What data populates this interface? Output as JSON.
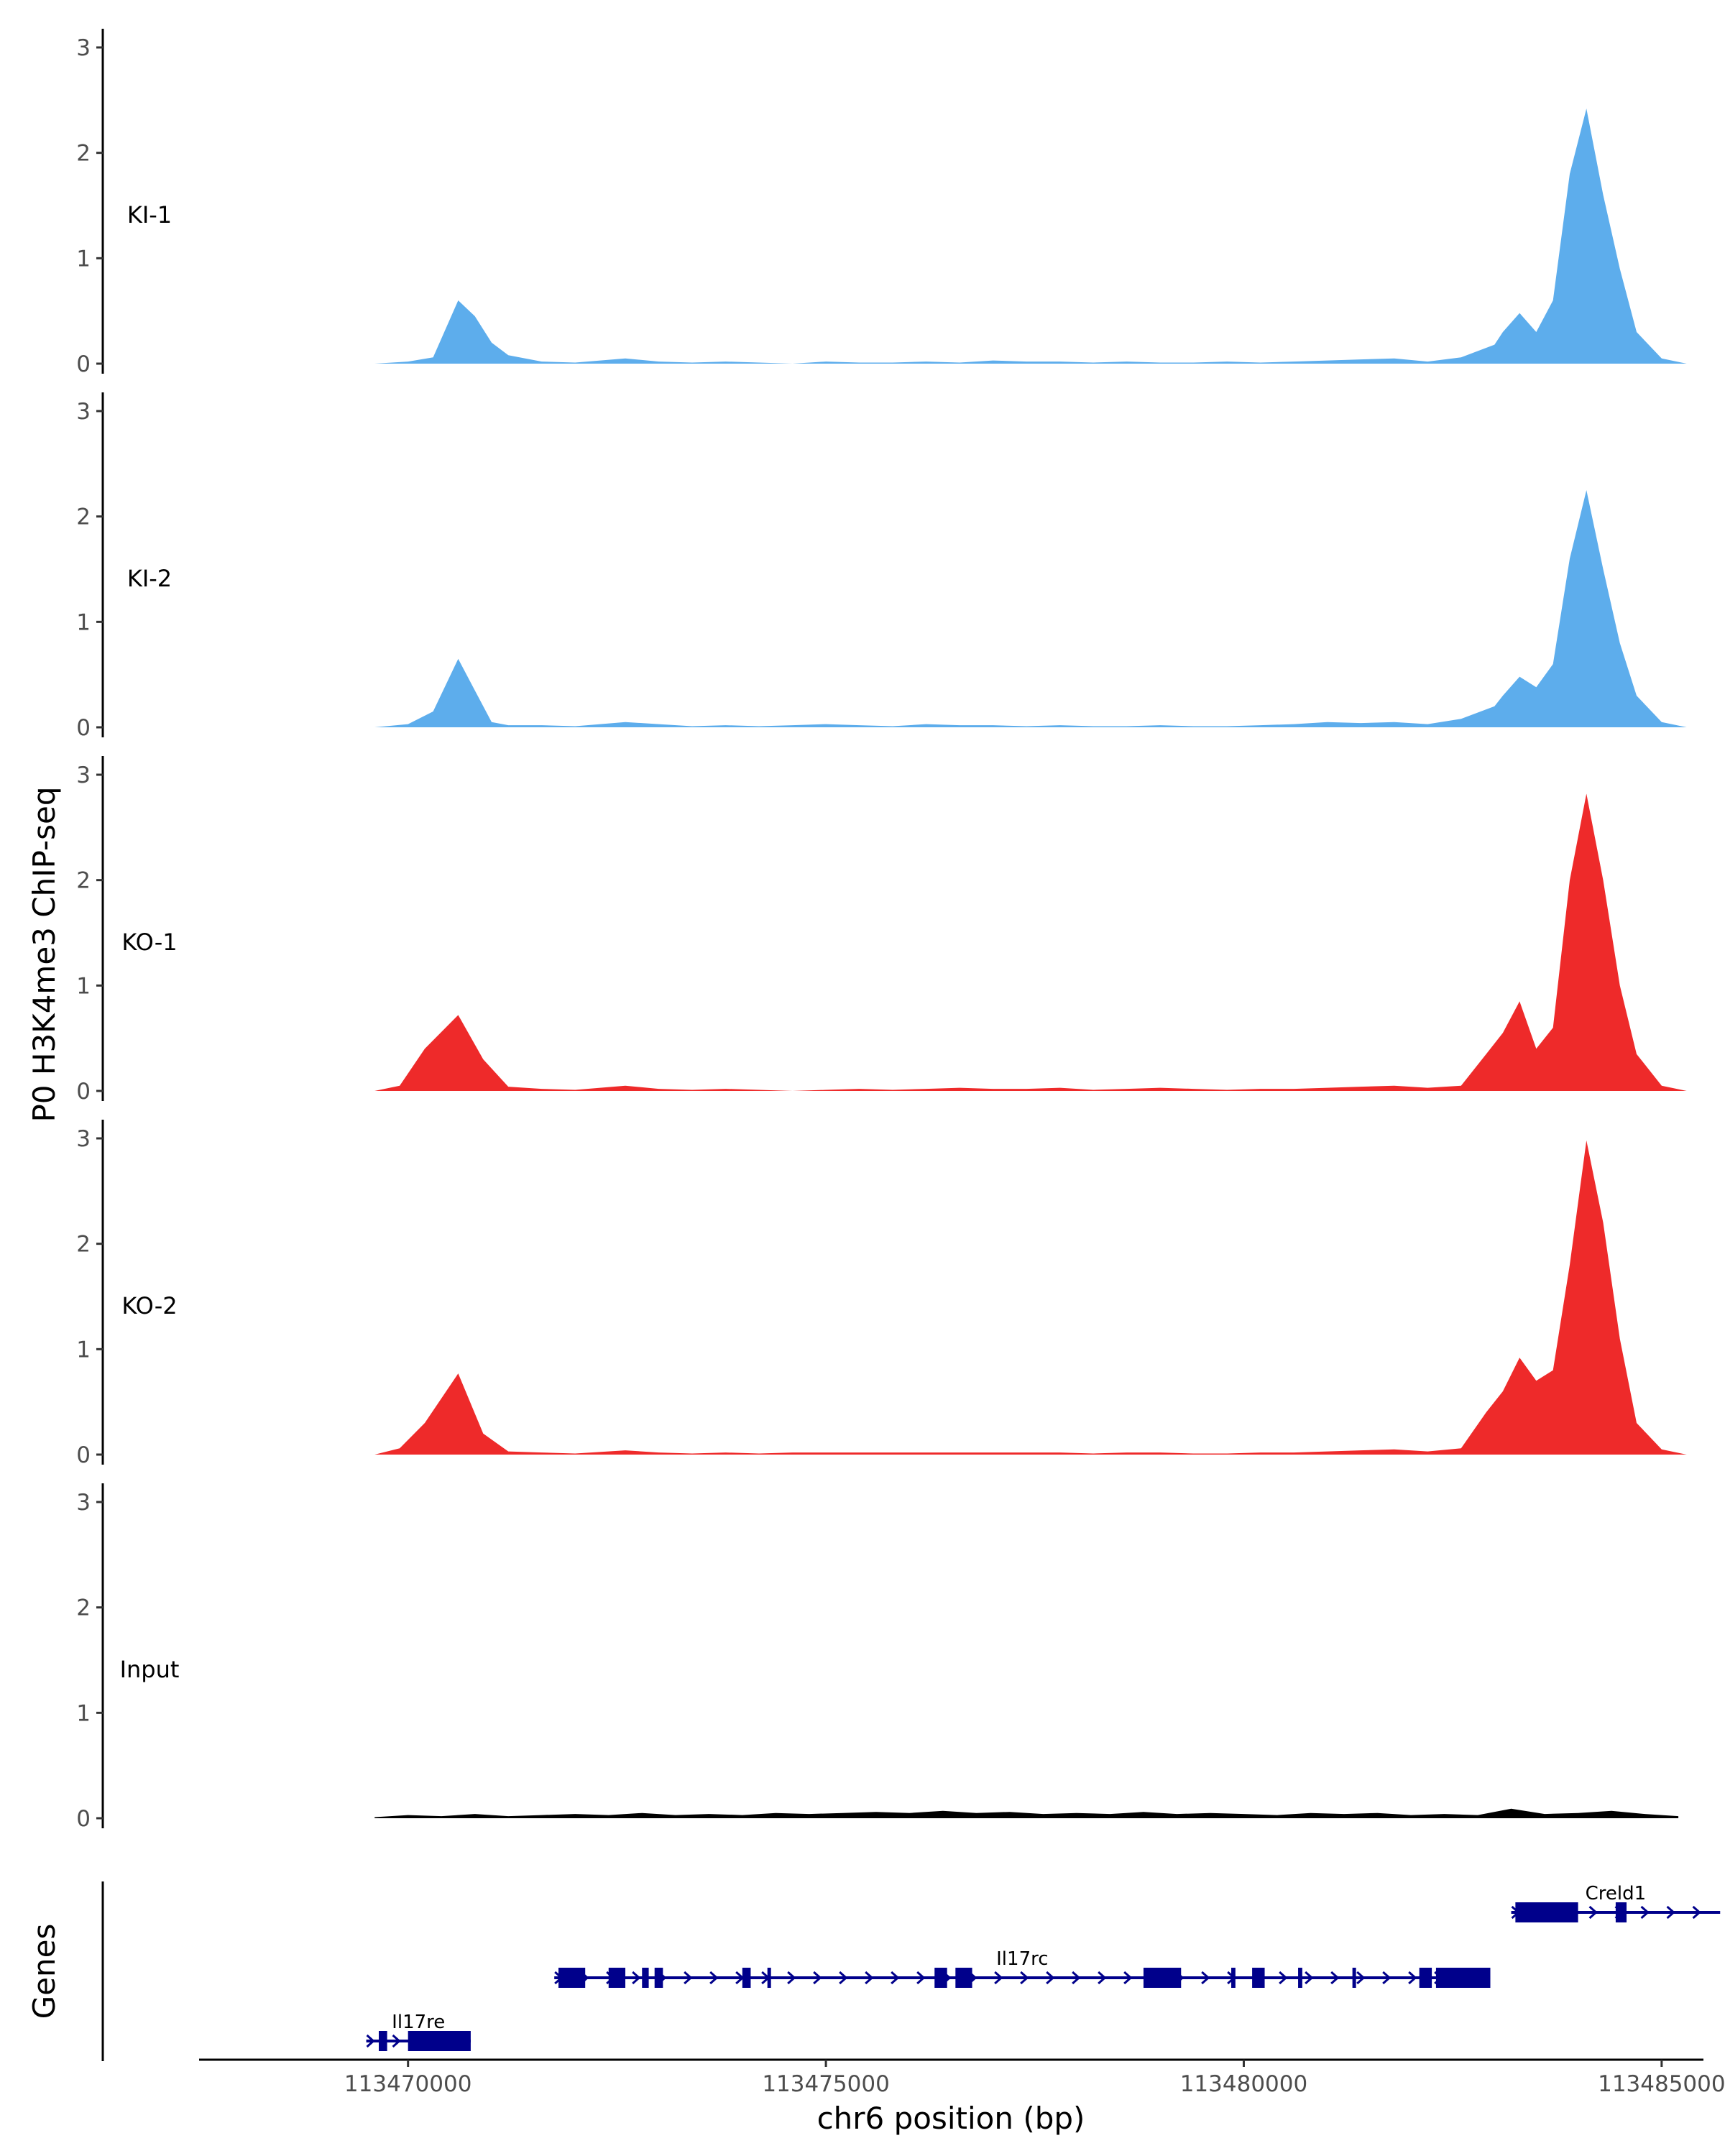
{
  "chart_data": {
    "type": "area",
    "title": "",
    "ylabel": "P0 H3K4me3 ChIP-seq",
    "genes_label": "Genes",
    "xlabel": "chr6 position (bp)",
    "xlim": [
      113467500,
      113485500
    ],
    "ylim": [
      0,
      3
    ],
    "yticks": [
      0,
      1,
      2,
      3
    ],
    "xticks": [
      {
        "value": 113470000,
        "label": "113470000"
      },
      {
        "value": 113475000,
        "label": "113475000"
      },
      {
        "value": 113480000,
        "label": "113480000"
      },
      {
        "value": 113485000,
        "label": "113485000"
      }
    ],
    "tracks": [
      {
        "name": "KI-1",
        "color": "#5DADEC",
        "x": [
          113469600,
          113470000,
          113470300,
          113470600,
          113470800,
          113471000,
          113471200,
          113471600,
          113472000,
          113472600,
          113473000,
          113473400,
          113473800,
          113474200,
          113474600,
          113475000,
          113475400,
          113475800,
          113476200,
          113476600,
          113477000,
          113477400,
          113477800,
          113478200,
          113478600,
          113479000,
          113479400,
          113479800,
          113480200,
          113480600,
          113481000,
          113481400,
          113481800,
          113482200,
          113482600,
          113483000,
          113483100,
          113483300,
          113483500,
          113483700,
          113483900,
          113484100,
          113484300,
          113484500,
          113484700,
          113485000,
          113485300
        ],
        "y": [
          0,
          0.02,
          0.06,
          0.6,
          0.45,
          0.2,
          0.08,
          0.02,
          0.01,
          0.05,
          0.02,
          0.01,
          0.02,
          0.01,
          0.0,
          0.02,
          0.01,
          0.01,
          0.02,
          0.01,
          0.03,
          0.02,
          0.02,
          0.01,
          0.02,
          0.01,
          0.01,
          0.02,
          0.01,
          0.02,
          0.03,
          0.04,
          0.05,
          0.02,
          0.06,
          0.18,
          0.3,
          0.48,
          0.3,
          0.6,
          1.8,
          2.42,
          1.6,
          0.9,
          0.3,
          0.05,
          0
        ]
      },
      {
        "name": "KI-2",
        "color": "#5DADEC",
        "x": [
          113469600,
          113470000,
          113470300,
          113470600,
          113470800,
          113471000,
          113471200,
          113471600,
          113472000,
          113472600,
          113473000,
          113473400,
          113473800,
          113474200,
          113474600,
          113475000,
          113475400,
          113475800,
          113476200,
          113476600,
          113477000,
          113477400,
          113477800,
          113478200,
          113478600,
          113479000,
          113479400,
          113479800,
          113480200,
          113480600,
          113481000,
          113481400,
          113481800,
          113482200,
          113482600,
          113483000,
          113483100,
          113483300,
          113483500,
          113483700,
          113483900,
          113484100,
          113484300,
          113484500,
          113484700,
          113485000,
          113485300
        ],
        "y": [
          0,
          0.03,
          0.15,
          0.65,
          0.35,
          0.05,
          0.02,
          0.02,
          0.01,
          0.05,
          0.03,
          0.01,
          0.02,
          0.01,
          0.02,
          0.03,
          0.02,
          0.01,
          0.03,
          0.02,
          0.02,
          0.01,
          0.02,
          0.01,
          0.01,
          0.02,
          0.01,
          0.01,
          0.02,
          0.03,
          0.05,
          0.04,
          0.05,
          0.03,
          0.08,
          0.2,
          0.3,
          0.48,
          0.38,
          0.6,
          1.6,
          2.25,
          1.5,
          0.8,
          0.3,
          0.05,
          0
        ]
      },
      {
        "name": "KO-1",
        "color": "#EE2A2A",
        "x": [
          113469600,
          113469900,
          113470200,
          113470600,
          113470900,
          113471200,
          113471600,
          113472000,
          113472600,
          113473000,
          113473400,
          113473800,
          113474200,
          113474600,
          113475000,
          113475400,
          113475800,
          113476200,
          113476600,
          113477000,
          113477400,
          113477800,
          113478200,
          113478600,
          113479000,
          113479400,
          113479800,
          113480200,
          113480600,
          113481000,
          113481400,
          113481800,
          113482200,
          113482600,
          113482900,
          113483100,
          113483300,
          113483500,
          113483700,
          113483900,
          113484100,
          113484300,
          113484500,
          113484700,
          113485000,
          113485300
        ],
        "y": [
          0,
          0.05,
          0.4,
          0.72,
          0.3,
          0.04,
          0.02,
          0.01,
          0.05,
          0.02,
          0.01,
          0.02,
          0.01,
          0.0,
          0.01,
          0.02,
          0.01,
          0.02,
          0.03,
          0.02,
          0.02,
          0.03,
          0.01,
          0.02,
          0.03,
          0.02,
          0.01,
          0.02,
          0.02,
          0.03,
          0.04,
          0.05,
          0.03,
          0.05,
          0.35,
          0.55,
          0.85,
          0.4,
          0.6,
          2.0,
          2.82,
          2.0,
          1.0,
          0.35,
          0.05,
          0
        ]
      },
      {
        "name": "KO-2",
        "color": "#EE2A2A",
        "x": [
          113469600,
          113469900,
          113470200,
          113470600,
          113470900,
          113471200,
          113471600,
          113472000,
          113472600,
          113473000,
          113473400,
          113473800,
          113474200,
          113474600,
          113475000,
          113475400,
          113475800,
          113476200,
          113476600,
          113477000,
          113477400,
          113477800,
          113478200,
          113478600,
          113479000,
          113479400,
          113479800,
          113480200,
          113480600,
          113481000,
          113481400,
          113481800,
          113482200,
          113482600,
          113482900,
          113483100,
          113483300,
          113483500,
          113483700,
          113483900,
          113484100,
          113484300,
          113484500,
          113484700,
          113485000,
          113485300
        ],
        "y": [
          0,
          0.06,
          0.3,
          0.77,
          0.2,
          0.03,
          0.02,
          0.01,
          0.04,
          0.02,
          0.01,
          0.02,
          0.01,
          0.02,
          0.02,
          0.02,
          0.02,
          0.02,
          0.02,
          0.02,
          0.02,
          0.02,
          0.01,
          0.02,
          0.02,
          0.01,
          0.01,
          0.02,
          0.02,
          0.03,
          0.04,
          0.05,
          0.03,
          0.06,
          0.4,
          0.6,
          0.92,
          0.7,
          0.8,
          1.8,
          2.98,
          2.2,
          1.1,
          0.3,
          0.05,
          0
        ]
      },
      {
        "name": "Input",
        "color": "#000000",
        "x": [
          113469600,
          113470000,
          113470400,
          113470800,
          113471200,
          113471600,
          113472000,
          113472400,
          113472800,
          113473200,
          113473600,
          113474000,
          113474400,
          113474800,
          113475200,
          113475600,
          113476000,
          113476400,
          113476800,
          113477200,
          113477600,
          113478000,
          113478400,
          113478800,
          113479200,
          113479600,
          113480000,
          113480400,
          113480800,
          113481200,
          113481600,
          113482000,
          113482400,
          113482800,
          113483200,
          113483600,
          113484000,
          113484400,
          113484800,
          113485200
        ],
        "y": [
          0.01,
          0.03,
          0.02,
          0.04,
          0.02,
          0.03,
          0.04,
          0.03,
          0.05,
          0.03,
          0.04,
          0.03,
          0.05,
          0.04,
          0.05,
          0.06,
          0.05,
          0.07,
          0.05,
          0.06,
          0.04,
          0.05,
          0.04,
          0.06,
          0.04,
          0.05,
          0.04,
          0.03,
          0.05,
          0.04,
          0.05,
          0.03,
          0.04,
          0.03,
          0.09,
          0.04,
          0.05,
          0.07,
          0.04,
          0.02
        ]
      }
    ],
    "genes": [
      {
        "name": "Il17re",
        "start": 113469500,
        "end": 113470750,
        "row": 0,
        "strand": "+",
        "exons": [
          [
            113469650,
            113469750
          ],
          [
            113470000,
            113470750
          ]
        ]
      },
      {
        "name": "Il17rc",
        "start": 113471750,
        "end": 113482950,
        "row": 1,
        "strand": "+",
        "exons": [
          [
            113471800,
            113472120
          ],
          [
            113472400,
            113472600
          ],
          [
            113472800,
            113472880
          ],
          [
            113472950,
            113473050
          ],
          [
            113474000,
            113474100
          ],
          [
            113474300,
            113474340
          ],
          [
            113476300,
            113476450
          ],
          [
            113476550,
            113476750
          ],
          [
            113478800,
            113479250
          ],
          [
            113479850,
            113479900
          ],
          [
            113480100,
            113480250
          ],
          [
            113480650,
            113480700
          ],
          [
            113481300,
            113481340
          ],
          [
            113482100,
            113482250
          ],
          [
            113482300,
            113482950
          ]
        ]
      },
      {
        "name": "Creld1",
        "start": 113483200,
        "end": 113485700,
        "row": 2,
        "strand": "+",
        "exons": [
          [
            113483250,
            113484000
          ],
          [
            113484450,
            113484580
          ]
        ]
      }
    ]
  }
}
